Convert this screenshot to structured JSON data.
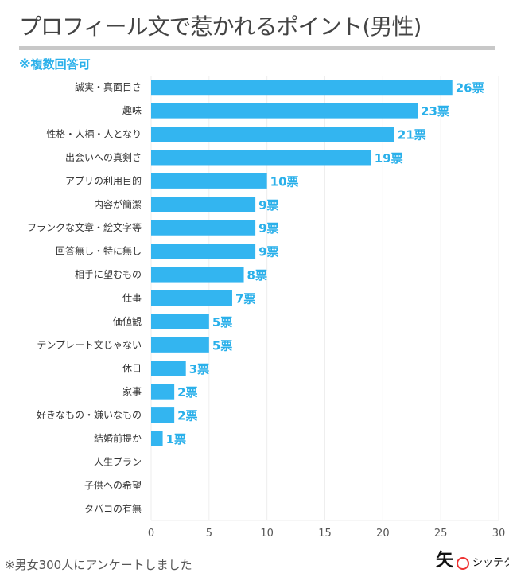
{
  "header": {
    "title": "プロフィール文で惹かれるポイント(男性)",
    "note": "※複数回答可"
  },
  "footer": {
    "note": "※男女300人にアンケートしました",
    "logo_text": "シッテク",
    "logo_mark": "矢"
  },
  "chart_data": {
    "type": "bar",
    "orientation": "horizontal",
    "categories": [
      "誠実・真面目さ",
      "趣味",
      "性格・人柄・人となり",
      "出会いへの真剣さ",
      "アプリの利用目的",
      "内容が簡潔",
      "フランクな文章・絵文字等",
      "回答無し・特に無し",
      "相手に望むもの",
      "仕事",
      "価値観",
      "テンプレート文じゃない",
      "休日",
      "家事",
      "好きなもの・嫌いなもの",
      "結婚前提か",
      "人生プラン",
      "子供への希望",
      "タバコの有無"
    ],
    "values": [
      26,
      23,
      21,
      19,
      10,
      9,
      9,
      9,
      8,
      7,
      5,
      5,
      3,
      2,
      2,
      1,
      0,
      0,
      0
    ],
    "value_suffix": "票",
    "xlim": [
      0,
      30
    ],
    "xticks": [
      0,
      5,
      10,
      15,
      20,
      25,
      30
    ],
    "grid": true,
    "bar_color": "#33b5f0",
    "label_color": "#2ab0ea"
  }
}
